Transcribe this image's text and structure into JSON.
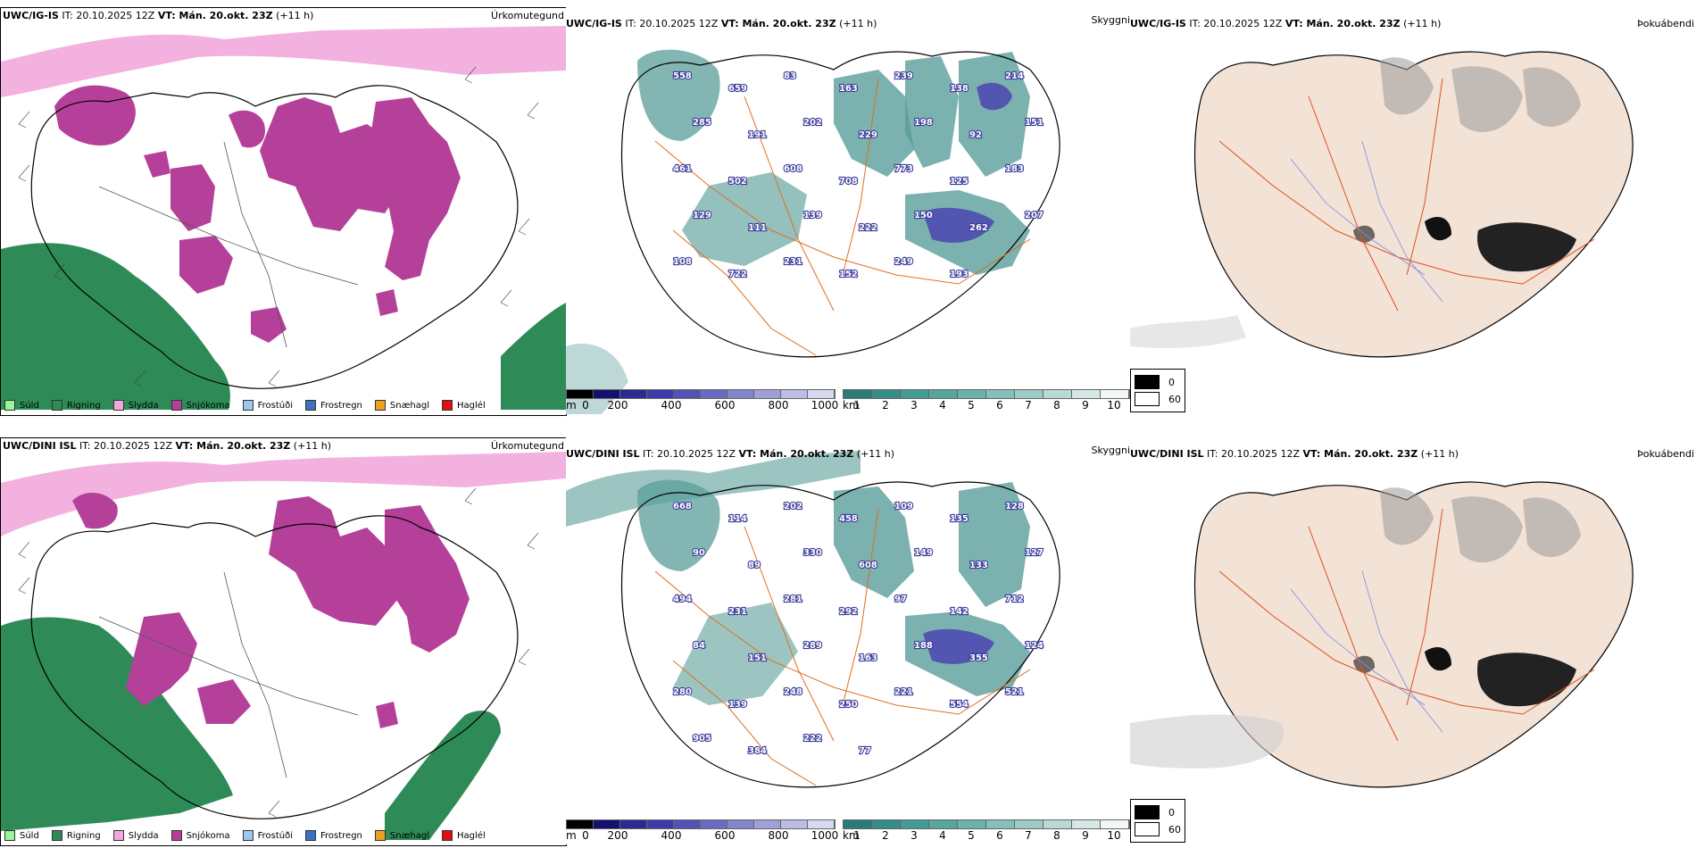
{
  "rows": [
    {
      "model": "UWC/IG-IS",
      "it": "IT: 20.10.2025 12Z",
      "vt": "VT: Mán. 20.okt. 23Z",
      "lead": "(+11 h)",
      "cloud_labels": [
        "558",
        "659",
        "83",
        "163",
        "239",
        "138",
        "214",
        "285",
        "191",
        "202",
        "229",
        "198",
        "92",
        "151",
        "461",
        "502",
        "608",
        "708",
        "773",
        "125",
        "183",
        "129",
        "111",
        "139",
        "222",
        "150",
        "262",
        "207",
        "108",
        "722",
        "231",
        "152",
        "249",
        "193"
      ]
    },
    {
      "model": "UWC/DINI ISL",
      "it": "IT: 20.10.2025 12Z",
      "vt": "VT: Mán. 20.okt. 23Z",
      "lead": "(+11 h)",
      "cloud_labels": [
        "668",
        "114",
        "202",
        "458",
        "109",
        "135",
        "128",
        "90",
        "89",
        "330",
        "608",
        "149",
        "133",
        "127",
        "494",
        "231",
        "281",
        "292",
        "97",
        "142",
        "712",
        "84",
        "151",
        "289",
        "163",
        "188",
        "355",
        "124",
        "280",
        "139",
        "248",
        "250",
        "221",
        "554",
        "521",
        "905",
        "384",
        "222",
        "77"
      ]
    }
  ],
  "panels": {
    "precip_type_title": "Úrkomutegund",
    "cloud_base_title": "Skyggni",
    "fog_title": "Þokuábendi"
  },
  "precip_legend": [
    {
      "label": "Súld",
      "color": "#98f598"
    },
    {
      "label": "Rigning",
      "color": "#2e8b57"
    },
    {
      "label": "Slydda",
      "color": "#f2a8dc"
    },
    {
      "label": "Snjókoma",
      "color": "#b5409a"
    },
    {
      "label": "Frostúði",
      "color": "#9cc8f0"
    },
    {
      "label": "Frostregn",
      "color": "#3b72c0"
    },
    {
      "label": "Snæhagl",
      "color": "#f0a020"
    },
    {
      "label": "Haglél",
      "color": "#e01010"
    }
  ],
  "cbar_m": {
    "unit": "m",
    "ticks": [
      "0",
      "200",
      "400",
      "600",
      "800",
      "1000"
    ],
    "colors": [
      "#000000",
      "#141070",
      "#2a2a90",
      "#3c3ca8",
      "#5252b5",
      "#6a6ac0",
      "#8585cc",
      "#a0a0d8",
      "#bcbce4",
      "#d8d8f0"
    ]
  },
  "cbar_km": {
    "unit": "km",
    "ticks": [
      "1",
      "2",
      "3",
      "4",
      "5",
      "6",
      "7",
      "8",
      "9",
      "10"
    ],
    "colors": [
      "#2a7a78",
      "#358c88",
      "#449a95",
      "#56a6a0",
      "#6cb2ac",
      "#84bfb8",
      "#9ecbc6",
      "#bad8d4",
      "#d6e8e6",
      "#f2f8f7"
    ]
  },
  "fog_key": [
    {
      "label": "0",
      "color": "#000000"
    },
    {
      "label": "60",
      "color": "#ffffff"
    }
  ],
  "colors": {
    "snow": "#b5409a",
    "sleet": "#f2a8dc",
    "rain": "#2e8b57",
    "cloud": "#5a9e9a",
    "cloud_dark": "#4a40b0",
    "terrain": "#f3e2d6",
    "road": "#e05020",
    "river": "#7c8ce8",
    "coast": "#000000",
    "fog_dark": "#222222"
  }
}
